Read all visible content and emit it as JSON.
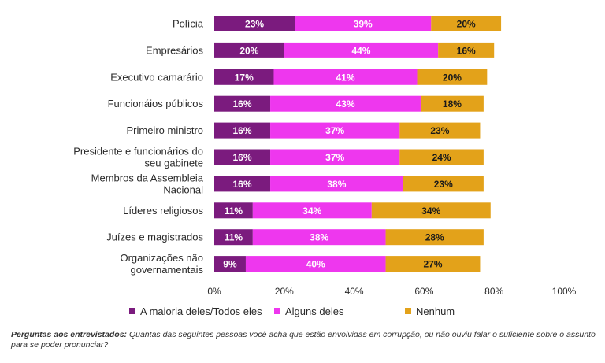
{
  "chart_data": {
    "type": "bar",
    "orientation": "horizontal",
    "stacked": true,
    "categories": [
      "Polícia",
      "Empresários",
      "Executivo camarário",
      "Funcionáios públicos",
      "Primeiro ministro",
      "Presidente e funcionários do seu gabinete",
      "Membros da Assembleia Nacional",
      "Líderes religiosos",
      "Juízes e magistrados",
      "Organizações não governamentais"
    ],
    "category_lines": [
      [
        "Polícia"
      ],
      [
        "Empresários"
      ],
      [
        "Executivo camarário"
      ],
      [
        "Funcionáios públicos"
      ],
      [
        "Primeiro ministro"
      ],
      [
        "Presidente e funcionários do",
        "seu gabinete"
      ],
      [
        "Membros da Assembleia",
        "Nacional"
      ],
      [
        "Líderes religiosos"
      ],
      [
        "Juízes e magistrados"
      ],
      [
        "Organizações não",
        "governamentais"
      ]
    ],
    "series": [
      {
        "name": "A maioria deles/Todos eles",
        "color": "#7b1b7e",
        "values": [
          23,
          20,
          17,
          16,
          16,
          16,
          16,
          11,
          11,
          9
        ]
      },
      {
        "name": "Alguns deles",
        "color": "#ee37ee",
        "values": [
          39,
          44,
          41,
          43,
          37,
          37,
          38,
          34,
          38,
          40
        ]
      },
      {
        "name": "Nenhum",
        "color": "#e3a21a",
        "values": [
          20,
          16,
          20,
          18,
          23,
          24,
          23,
          34,
          28,
          27
        ]
      }
    ],
    "xlim": [
      0,
      100
    ],
    "xticks": [
      "0%",
      "20%",
      "40%",
      "60%",
      "80%",
      "100%"
    ],
    "grid": false,
    "legend_position": "bottom"
  },
  "footnote": {
    "label": "Perguntas aos entrevistados:",
    "text": " Quantas das seguintes pessoas você acha que estão envolvidas em corrupção, ou não ouviu falar o suficiente sobre o assunto para se poder pronunciar?"
  }
}
